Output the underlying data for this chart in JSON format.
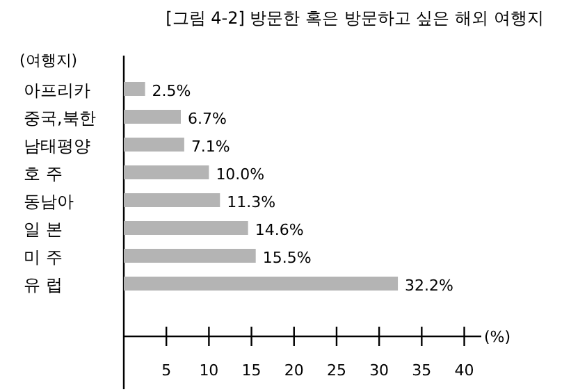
{
  "chart_data": {
    "type": "bar",
    "orientation": "horizontal",
    "title": "[그림 4-2] 방문한 혹은 방문하고 싶은 해외 여행지",
    "ylabel": "(여행지)",
    "xlabel": "(%)",
    "categories": [
      "아프리카",
      "중국,북한",
      "남태평양",
      "호 주",
      "동남아",
      "일 본",
      "미 주",
      "유 럽"
    ],
    "values": [
      2.5,
      6.7,
      7.1,
      10.0,
      11.3,
      14.6,
      15.5,
      32.2
    ],
    "value_labels": [
      "2.5%",
      "6.7%",
      "7.1%",
      "10.0%",
      "11.3%",
      "14.6%",
      "15.5%",
      "32.2%"
    ],
    "color": "#b4b4b4",
    "xlim": [
      0,
      42
    ],
    "xticks": [
      5,
      10,
      15,
      20,
      25,
      30,
      35,
      40
    ],
    "grid": false
  }
}
